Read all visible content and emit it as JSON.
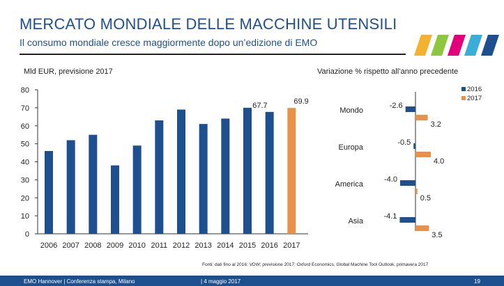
{
  "slide": {
    "title": "MERCATO MONDIALE DELLE MACCHINE UTENSILI",
    "subtitle": "Il consumo mondiale cresce maggiormente dopo un’edizione di EMO",
    "source": "Fonti: dati fino al 2016: VDW; previsione 2017: Oxford Economics, Global Machine Tool Outlook, primavera 2017",
    "footer_left": "EMO Hannover | Conferenza stampa, Milano",
    "footer_date": "| 4 maggio 2017",
    "footer_page": "19"
  },
  "logo": {
    "name": "emo-logo-icon",
    "colors": [
      "#f3b230",
      "#8fc640",
      "#e2007a",
      "#3aaed8",
      "#1e4f8f"
    ]
  },
  "colors": {
    "bar_primary": "#1e4f8f",
    "bar_forecast": "#e8914a",
    "axis": "#333333"
  },
  "chart_data": [
    {
      "type": "bar",
      "title": "",
      "ylabel": "Mld EUR, previsione 2017",
      "categories": [
        "2006",
        "2007",
        "2008",
        "2009",
        "2010",
        "2011",
        "2012",
        "2013",
        "2014",
        "2015",
        "2016",
        "2017"
      ],
      "values": [
        46,
        52,
        55,
        38,
        49,
        63,
        69,
        61,
        64,
        70,
        67.7,
        69.9
      ],
      "data_labels": {
        "2016": "67.7",
        "2017": "69.9"
      },
      "forecast_categories": [
        "2017"
      ],
      "ylim": [
        0,
        80
      ],
      "yticks": [
        0,
        10,
        20,
        30,
        40,
        50,
        60,
        70,
        80
      ]
    },
    {
      "type": "bar",
      "orientation": "horizontal",
      "title": "Variazione % rispetto all’anno precedente",
      "categories": [
        "Mondo",
        "Europa",
        "America",
        "Asia"
      ],
      "series": [
        {
          "name": "2016",
          "values": [
            -2.6,
            -0.5,
            -4.0,
            -4.1
          ]
        },
        {
          "name": "2017",
          "values": [
            3.2,
            4.0,
            0.5,
            3.5
          ]
        }
      ],
      "labels": {
        "2016": [
          "-2.6",
          "-0.5",
          "-4.0",
          "-4.1"
        ],
        "2017": [
          "3.2",
          "4.0",
          "0.5",
          "3.5"
        ]
      },
      "legend": [
        "2016",
        "2017"
      ]
    }
  ]
}
